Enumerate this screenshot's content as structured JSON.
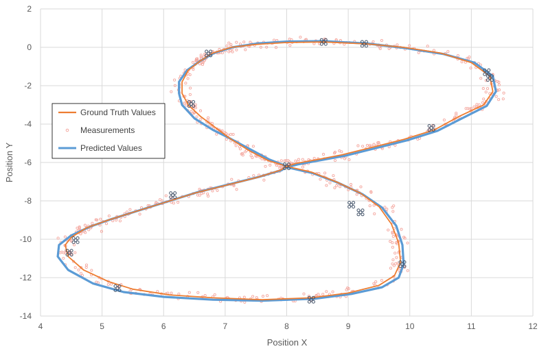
{
  "chart_data": {
    "type": "line",
    "title": "",
    "xlabel": "Position X",
    "ylabel": "Position Y",
    "xlim": [
      4,
      12
    ],
    "ylim": [
      -14,
      2
    ],
    "x_ticks": [
      "4",
      "5",
      "6",
      "7",
      "8",
      "9",
      "10",
      "11",
      "12"
    ],
    "y_ticks": [
      "2",
      "0",
      "-2",
      "-4",
      "-6",
      "-8",
      "-10",
      "-12",
      "-14"
    ],
    "grid": true,
    "legend_position": "left",
    "colors": {
      "ground_truth": "#ED7D31",
      "measurements": "#F4A8A0",
      "predicted": "#5B9BD5",
      "markers": "#44546A"
    },
    "series": [
      {
        "name": "Ground Truth Values",
        "type": "line",
        "x": [
          8.0,
          8.6,
          9.3,
          9.9,
          10.5,
          11.0,
          11.3,
          11.35,
          11.2,
          10.8,
          10.4,
          9.9,
          9.4,
          8.9,
          8.5,
          8.15,
          8.0,
          8.4,
          8.8,
          9.2,
          9.5,
          9.7,
          9.82,
          9.85,
          9.75,
          9.5,
          9.0,
          8.4,
          7.6,
          6.8,
          6.1,
          5.5,
          5.1,
          4.7,
          4.45,
          4.4,
          4.5,
          4.75,
          5.1,
          5.5,
          6.0,
          6.5,
          7.0,
          7.5,
          7.9,
          8.0,
          7.7,
          7.4,
          7.1,
          6.85,
          6.6,
          6.4,
          6.3,
          6.3,
          6.4,
          6.6,
          6.8,
          7.1,
          7.5,
          8.0
        ],
        "y": [
          0.25,
          0.28,
          0.18,
          0.0,
          -0.3,
          -0.8,
          -1.5,
          -2.3,
          -3.0,
          -3.6,
          -4.3,
          -4.8,
          -5.2,
          -5.6,
          -5.85,
          -6.05,
          -6.2,
          -6.5,
          -7.0,
          -7.6,
          -8.3,
          -9.2,
          -10.2,
          -11.2,
          -11.9,
          -12.4,
          -12.8,
          -13.05,
          -13.15,
          -13.05,
          -12.9,
          -12.6,
          -12.2,
          -11.6,
          -10.9,
          -10.3,
          -9.9,
          -9.4,
          -9.0,
          -8.6,
          -8.1,
          -7.6,
          -7.2,
          -6.8,
          -6.4,
          -6.2,
          -5.9,
          -5.4,
          -4.8,
          -4.2,
          -3.6,
          -3.0,
          -2.4,
          -1.8,
          -1.2,
          -0.7,
          -0.3,
          0.0,
          0.15,
          0.25
        ]
      },
      {
        "name": "Measurements",
        "type": "scatter",
        "count": 700,
        "noise": 0.12
      },
      {
        "name": "Predicted Values",
        "type": "line",
        "x": [
          8.0,
          8.6,
          9.3,
          9.95,
          10.55,
          11.05,
          11.35,
          11.4,
          11.25,
          10.85,
          10.45,
          9.95,
          9.45,
          8.95,
          8.52,
          8.18,
          8.0,
          8.42,
          8.83,
          9.23,
          9.55,
          9.78,
          9.88,
          9.9,
          9.82,
          9.55,
          9.05,
          8.45,
          7.6,
          6.8,
          6.0,
          5.35,
          4.85,
          4.45,
          4.28,
          4.3,
          4.5,
          4.8,
          5.15,
          5.55,
          6.05,
          6.55,
          7.05,
          7.55,
          7.92,
          8.0,
          7.72,
          7.4,
          7.05,
          6.8,
          6.5,
          6.3,
          6.25,
          6.25,
          6.38,
          6.6,
          6.82,
          7.12,
          7.52,
          8.0
        ],
        "y": [
          0.3,
          0.32,
          0.2,
          -0.05,
          -0.35,
          -0.8,
          -1.5,
          -2.3,
          -3.05,
          -3.7,
          -4.35,
          -4.85,
          -5.25,
          -5.65,
          -5.9,
          -6.1,
          -6.25,
          -6.55,
          -7.05,
          -7.65,
          -8.35,
          -9.3,
          -10.3,
          -11.3,
          -12.0,
          -12.5,
          -12.85,
          -13.1,
          -13.2,
          -13.15,
          -13.0,
          -12.75,
          -12.3,
          -11.6,
          -10.9,
          -10.3,
          -9.8,
          -9.35,
          -8.95,
          -8.55,
          -8.05,
          -7.55,
          -7.15,
          -6.75,
          -6.4,
          -6.2,
          -5.85,
          -5.3,
          -4.7,
          -4.3,
          -3.7,
          -3.0,
          -2.4,
          -1.8,
          -1.2,
          -0.7,
          -0.3,
          0.0,
          0.2,
          0.3
        ]
      },
      {
        "name": "",
        "type": "marker",
        "x": [
          6.73,
          8.6,
          9.26,
          11.25,
          11.3,
          10.35,
          8.0,
          9.05,
          9.2,
          9.88,
          8.4,
          5.25,
          4.47,
          4.57,
          6.15,
          6.45
        ],
        "y": [
          -0.32,
          0.28,
          0.18,
          -1.3,
          -1.6,
          -4.2,
          -6.2,
          -8.2,
          -8.6,
          -11.3,
          -13.15,
          -12.55,
          -10.7,
          -10.05,
          -7.7,
          -2.95
        ]
      }
    ]
  }
}
